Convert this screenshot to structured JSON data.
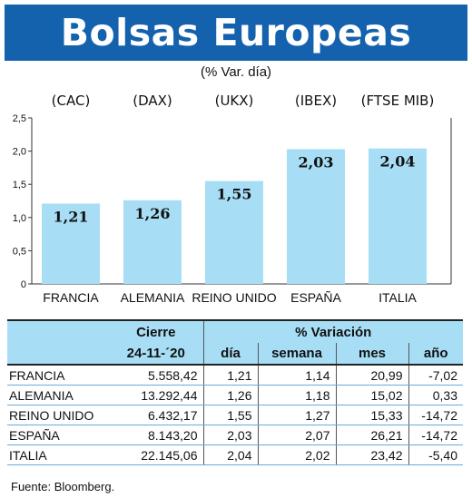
{
  "title": "Bolsas Europeas",
  "subtitle": "(% Var. día)",
  "chart_data": {
    "type": "bar",
    "categories": [
      "FRANCIA",
      "ALEMANIA",
      "REINO UNIDO",
      "ESPAÑA",
      "ITALIA"
    ],
    "indices": [
      "(CAC)",
      "(DAX)",
      "(UKX)",
      "(IBEX)",
      "(FTSE MIB)"
    ],
    "values": [
      1.21,
      1.26,
      1.55,
      2.03,
      2.04
    ],
    "value_labels": [
      "1,21",
      "1,26",
      "1,55",
      "2,03",
      "2,04"
    ],
    "y_ticks": [
      "0",
      "0,5",
      "1,0",
      "1,5",
      "2,0",
      "2,5"
    ],
    "ylim": [
      0,
      2.5
    ],
    "bar_color": "#a7def5",
    "grid": false
  },
  "table": {
    "headers": {
      "cierre": "Cierre",
      "variacion": "% Variación",
      "date": "24-11-´20",
      "dia": "día",
      "semana": "semana",
      "mes": "mes",
      "anio": "año"
    },
    "rows": [
      {
        "pais": "FRANCIA",
        "cierre": "5.558,42",
        "dia": "1,21",
        "semana": "1,14",
        "mes": "20,99",
        "anio": "-7,02"
      },
      {
        "pais": "ALEMANIA",
        "cierre": "13.292,44",
        "dia": "1,26",
        "semana": "1,18",
        "mes": "15,02",
        "anio": "0,33"
      },
      {
        "pais": "REINO UNIDO",
        "cierre": "6.432,17",
        "dia": "1,55",
        "semana": "1,27",
        "mes": "15,33",
        "anio": "-14,72"
      },
      {
        "pais": "ESPAÑA",
        "cierre": "8.143,20",
        "dia": "2,03",
        "semana": "2,07",
        "mes": "26,21",
        "anio": "-14,72"
      },
      {
        "pais": "ITALIA",
        "cierre": "22.145,06",
        "dia": "2,04",
        "semana": "2,02",
        "mes": "23,42",
        "anio": "-5,40"
      }
    ]
  },
  "source": "Fuente: Bloomberg."
}
